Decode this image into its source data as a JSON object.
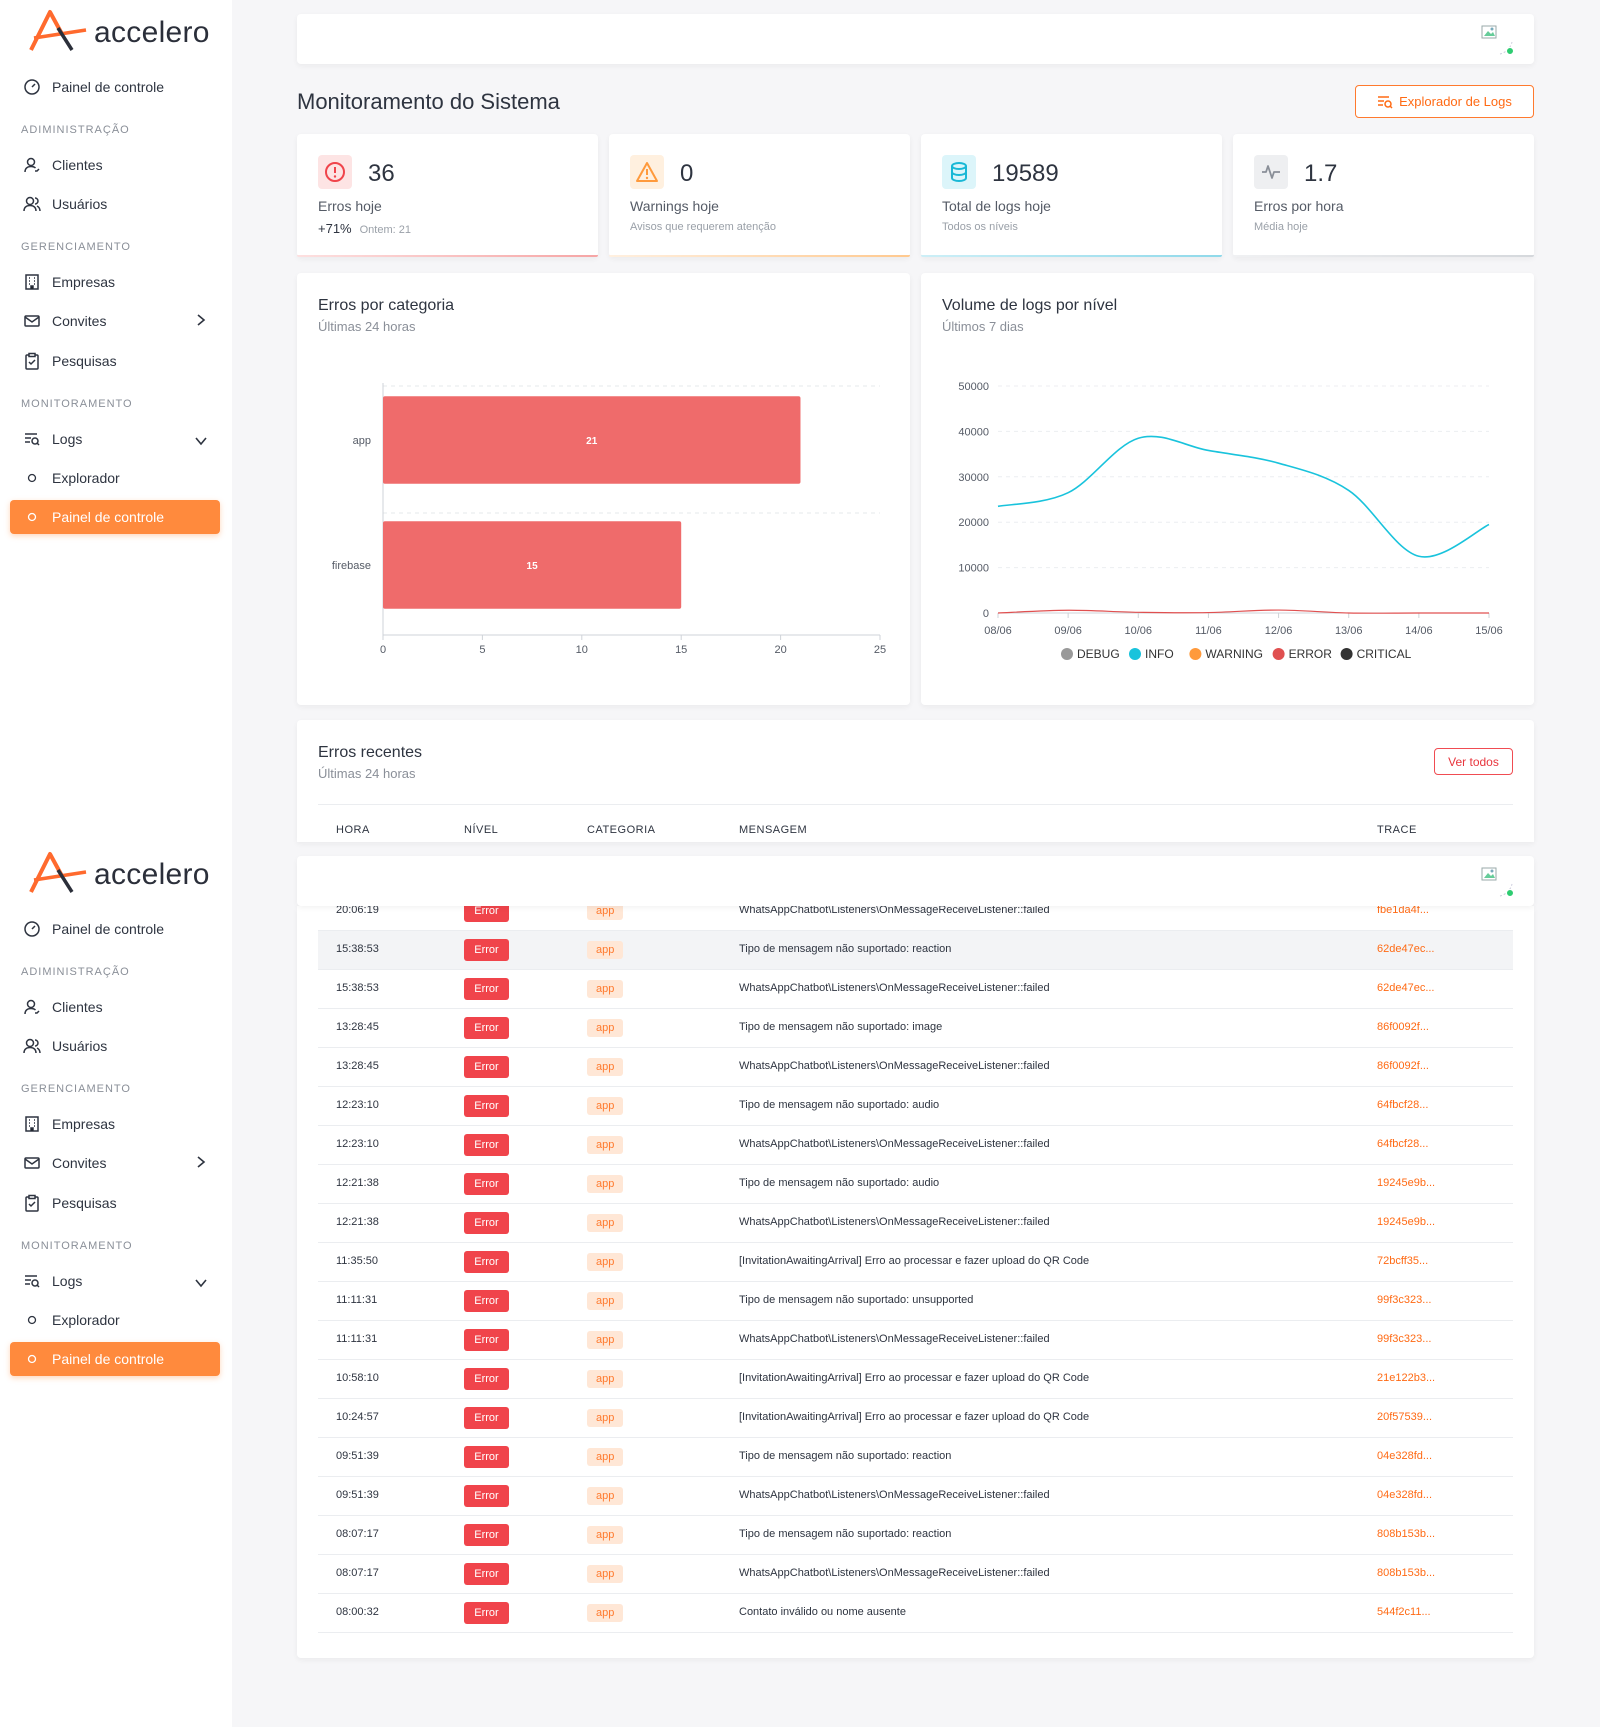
{
  "brand": {
    "name": "accelero"
  },
  "sidebar": {
    "items": [
      {
        "label": "Painel de controle",
        "icon": "dashboard-icon"
      },
      {
        "section": "ADIMINISTRAÇÃO"
      },
      {
        "label": "Clientes",
        "icon": "user-icon"
      },
      {
        "label": "Usuários",
        "icon": "users-icon"
      },
      {
        "section": "GERENCIAMENTO"
      },
      {
        "label": "Empresas",
        "icon": "building-icon"
      },
      {
        "label": "Convites",
        "icon": "mail-icon"
      },
      {
        "label": "Pesquisas",
        "icon": "clipboard-icon"
      },
      {
        "section": "MONITORAMENTO"
      },
      {
        "label": "Logs",
        "icon": "logs-icon"
      },
      {
        "label": "Explorador",
        "icon": "circle-icon"
      },
      {
        "label": "Painel de controle",
        "icon": "circle-icon",
        "active": true
      }
    ]
  },
  "page": {
    "title": "Monitoramento do Sistema",
    "explorer_button": "Explorador de Logs"
  },
  "stats": [
    {
      "value": "36",
      "label": "Erros hoje",
      "change": "+71%",
      "sub": "Ontem: 21",
      "color": "#f0444b"
    },
    {
      "value": "0",
      "label": "Warnings hoje",
      "sub": "Avisos que requerem atenção",
      "color": "#ff9a3c"
    },
    {
      "value": "19589",
      "label": "Total de logs hoje",
      "sub": "Todos os níveis",
      "color": "#19b8d6"
    },
    {
      "value": "1.7",
      "label": "Erros por hora",
      "sub": "Média hoje",
      "color": "#8a8f98"
    }
  ],
  "charts": {
    "errors_by_category": {
      "title": "Erros por categoria",
      "subtitle": "Últimas 24 horas"
    },
    "volume_by_level": {
      "title": "Volume de logs por nível",
      "subtitle": "Últimos 7 dias"
    }
  },
  "chart_data": [
    {
      "type": "bar",
      "orientation": "horizontal",
      "categories": [
        "app",
        "firebase"
      ],
      "values": [
        21,
        15
      ],
      "xlim": [
        0,
        25
      ],
      "xticks": [
        0,
        5,
        10,
        15,
        20,
        25
      ],
      "color": "#ef6b6b"
    },
    {
      "type": "line",
      "x": [
        "08/06",
        "09/06",
        "10/06",
        "11/06",
        "12/06",
        "13/06",
        "14/06",
        "15/06"
      ],
      "ylim": [
        0,
        50000
      ],
      "yticks": [
        0,
        10000,
        20000,
        30000,
        40000,
        50000
      ],
      "legend_position": "bottom",
      "series": [
        {
          "name": "DEBUG",
          "color": "#999999",
          "values": [
            0,
            0,
            0,
            0,
            0,
            0,
            0,
            0
          ]
        },
        {
          "name": "INFO",
          "color": "#19c3dc",
          "values": [
            23500,
            26500,
            38500,
            35800,
            33000,
            27000,
            12500,
            19500
          ]
        },
        {
          "name": "WARNING",
          "color": "#ff9a3c",
          "values": [
            0,
            0,
            0,
            0,
            0,
            0,
            0,
            0
          ]
        },
        {
          "name": "ERROR",
          "color": "#e05050",
          "values": [
            0,
            600,
            150,
            100,
            650,
            0,
            0,
            0
          ]
        },
        {
          "name": "CRITICAL",
          "color": "#333333",
          "values": [
            0,
            0,
            0,
            0,
            0,
            0,
            0,
            0
          ]
        }
      ]
    }
  ],
  "recent_errors": {
    "title": "Erros recentes",
    "subtitle": "Últimas 24 horas",
    "see_all": "Ver todos",
    "columns": [
      "HORA",
      "NÍVEL",
      "CATEGORIA",
      "MENSAGEM",
      "TRACE"
    ],
    "rows": [
      {
        "time": "20:06:19",
        "level": "Error",
        "category": "app",
        "message": "WhatsAppChatbot\\Listeners\\OnMessageReceiveListener::failed",
        "trace": "fbe1da4f..."
      },
      {
        "time": "15:38:53",
        "level": "Error",
        "category": "app",
        "message": "Tipo de mensagem não suportado: reaction",
        "trace": "62de47ec..."
      },
      {
        "time": "15:38:53",
        "level": "Error",
        "category": "app",
        "message": "WhatsAppChatbot\\Listeners\\OnMessageReceiveListener::failed",
        "trace": "62de47ec..."
      },
      {
        "time": "13:28:45",
        "level": "Error",
        "category": "app",
        "message": "Tipo de mensagem não suportado: image",
        "trace": "86f0092f..."
      },
      {
        "time": "13:28:45",
        "level": "Error",
        "category": "app",
        "message": "WhatsAppChatbot\\Listeners\\OnMessageReceiveListener::failed",
        "trace": "86f0092f..."
      },
      {
        "time": "12:23:10",
        "level": "Error",
        "category": "app",
        "message": "Tipo de mensagem não suportado: audio",
        "trace": "64fbcf28..."
      },
      {
        "time": "12:23:10",
        "level": "Error",
        "category": "app",
        "message": "WhatsAppChatbot\\Listeners\\OnMessageReceiveListener::failed",
        "trace": "64fbcf28..."
      },
      {
        "time": "12:21:38",
        "level": "Error",
        "category": "app",
        "message": "Tipo de mensagem não suportado: audio",
        "trace": "19245e9b..."
      },
      {
        "time": "12:21:38",
        "level": "Error",
        "category": "app",
        "message": "WhatsAppChatbot\\Listeners\\OnMessageReceiveListener::failed",
        "trace": "19245e9b..."
      },
      {
        "time": "11:35:50",
        "level": "Error",
        "category": "app",
        "message": "[InvitationAwaitingArrival] Erro ao processar e fazer upload do QR Code",
        "trace": "72bcff35..."
      },
      {
        "time": "11:11:31",
        "level": "Error",
        "category": "app",
        "message": "Tipo de mensagem não suportado: unsupported",
        "trace": "99f3c323..."
      },
      {
        "time": "11:11:31",
        "level": "Error",
        "category": "app",
        "message": "WhatsAppChatbot\\Listeners\\OnMessageReceiveListener::failed",
        "trace": "99f3c323..."
      },
      {
        "time": "10:58:10",
        "level": "Error",
        "category": "app",
        "message": "[InvitationAwaitingArrival] Erro ao processar e fazer upload do QR Code",
        "trace": "21e122b3..."
      },
      {
        "time": "10:24:57",
        "level": "Error",
        "category": "app",
        "message": "[InvitationAwaitingArrival] Erro ao processar e fazer upload do QR Code",
        "trace": "20f57539..."
      },
      {
        "time": "09:51:39",
        "level": "Error",
        "category": "app",
        "message": "Tipo de mensagem não suportado: reaction",
        "trace": "04e328fd..."
      },
      {
        "time": "09:51:39",
        "level": "Error",
        "category": "app",
        "message": "WhatsAppChatbot\\Listeners\\OnMessageReceiveListener::failed",
        "trace": "04e328fd..."
      },
      {
        "time": "08:07:17",
        "level": "Error",
        "category": "app",
        "message": "Tipo de mensagem não suportado: reaction",
        "trace": "808b153b..."
      },
      {
        "time": "08:07:17",
        "level": "Error",
        "category": "app",
        "message": "WhatsAppChatbot\\Listeners\\OnMessageReceiveListener::failed",
        "trace": "808b153b..."
      },
      {
        "time": "08:00:32",
        "level": "Error",
        "category": "app",
        "message": "Contato inválido ou nome ausente",
        "trace": "544f2c11..."
      }
    ]
  }
}
